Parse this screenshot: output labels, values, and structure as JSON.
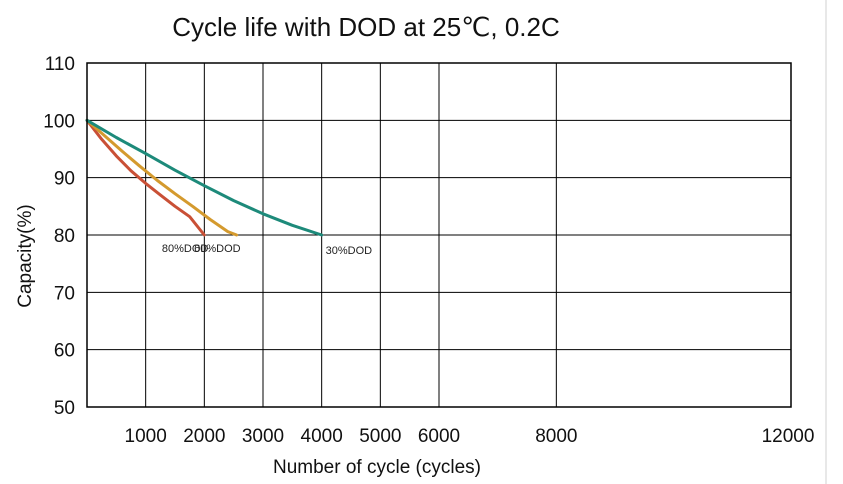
{
  "chart_data": {
    "type": "line",
    "title": "Cycle life with DOD at 25℃, 0.2C",
    "xlabel": "Number of cycle (cycles)",
    "ylabel": "Capacity(%)",
    "xlim": [
      0,
      12000
    ],
    "ylim": [
      50,
      110
    ],
    "x_ticks": [
      1000,
      2000,
      3000,
      4000,
      5000,
      6000,
      8000,
      12000
    ],
    "y_ticks": [
      50,
      60,
      70,
      80,
      90,
      100,
      110
    ],
    "grid": true,
    "series": [
      {
        "name": "80%DOD",
        "color": "#c95036",
        "x": [
          0,
          250,
          500,
          750,
          1000,
          1250,
          1500,
          1750,
          2000
        ],
        "y": [
          100,
          96.7,
          93.8,
          91.2,
          89.0,
          87.0,
          85.0,
          83.2,
          80.0
        ]
      },
      {
        "name": "60%DOD",
        "color": "#d49a2e",
        "x": [
          0,
          300,
          600,
          900,
          1200,
          1500,
          1800,
          2100,
          2400,
          2550
        ],
        "y": [
          100,
          97.3,
          94.6,
          92.0,
          89.5,
          87.2,
          85.0,
          82.7,
          80.6,
          80.0
        ]
      },
      {
        "name": "30%DOD",
        "color": "#1d8a7a",
        "x": [
          0,
          500,
          1000,
          1500,
          2000,
          2500,
          3000,
          3500,
          4000
        ],
        "y": [
          100,
          97.0,
          94.2,
          91.3,
          88.6,
          86.0,
          83.7,
          81.7,
          80.0
        ]
      }
    ]
  }
}
